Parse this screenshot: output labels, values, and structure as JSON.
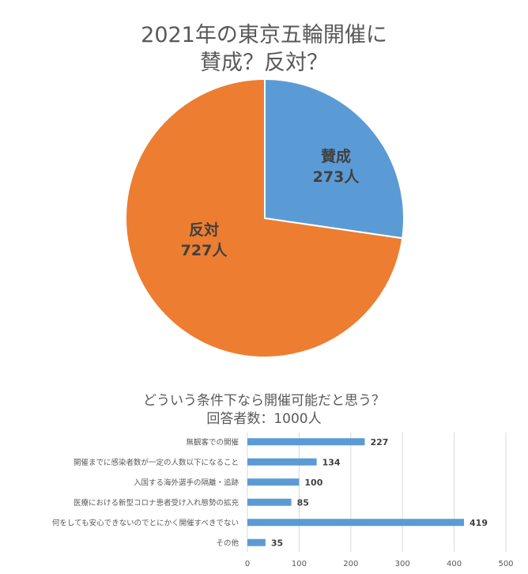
{
  "chart_data": [
    {
      "type": "pie",
      "title_lines": [
        "2021年の東京五輪開催に",
        "賛成？反対？"
      ],
      "slices": [
        {
          "label": "賛成",
          "value": 273,
          "value_label": "273人",
          "color": "#5b9bd5"
        },
        {
          "label": "反対",
          "value": 727,
          "value_label": "727人",
          "color": "#ed7d31"
        }
      ]
    },
    {
      "type": "bar",
      "orientation": "horizontal",
      "title_lines": [
        "どういう条件下なら開催可能だと思う？",
        "回答者数：1000人"
      ],
      "categories": [
        "無観客での開催",
        "開催までに感染者数が一定の人数以下になること",
        "入国する海外選手の隔離・追跡",
        "医療における新型コロナ患者受け入れ態勢の拡充",
        "何をしても安心できないのでとにかく開催すべきでない",
        "その他"
      ],
      "values": [
        227,
        134,
        100,
        85,
        419,
        35
      ],
      "xlim": [
        0,
        500
      ],
      "xticks": [
        "0",
        "100",
        "200",
        "300",
        "400",
        "500"
      ],
      "bar_color": "#5b9bd5",
      "grid": true
    }
  ]
}
